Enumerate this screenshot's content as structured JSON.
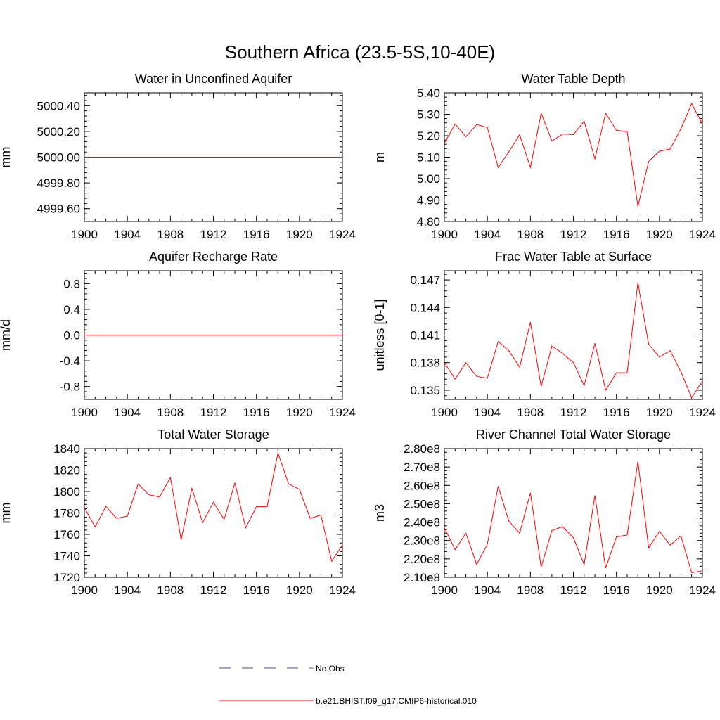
{
  "title": "Southern Africa (23.5-5S,10-40E)",
  "colors": {
    "model": "#ff0000",
    "obs": "#4b4bcc",
    "axis": "#000000"
  },
  "legend": [
    {
      "label": "No Obs",
      "style": "dashed",
      "color": "#4b4bcc"
    },
    {
      "label": "b.e21.BHIST.f09_g17.CMIP6-historical.010",
      "style": "solid",
      "color": "#ff0000"
    }
  ],
  "chart_data": [
    {
      "type": "line",
      "title": "Water in Unconfined Aquifer",
      "ylabel": "mm",
      "xlim": [
        1900,
        1924
      ],
      "ylim": [
        4999.5,
        5000.5
      ],
      "xticks": [
        "1900",
        "1904",
        "1908",
        "1912",
        "1916",
        "1920",
        "1924"
      ],
      "yticks": [
        4999.6,
        4999.8,
        5000.0,
        5000.2,
        5000.4
      ],
      "ytick_labels": [
        "4999.60",
        "4999.80",
        "5000.00",
        "5000.20",
        "5000.40"
      ],
      "x": [
        1900,
        1901,
        1902,
        1903,
        1904,
        1905,
        1906,
        1907,
        1908,
        1909,
        1910,
        1911,
        1912,
        1913,
        1914,
        1915,
        1916,
        1917,
        1918,
        1919,
        1920,
        1921,
        1922,
        1923,
        1924
      ],
      "series": [
        {
          "name": "b.e21.BHIST.f09_g17.CMIP6-historical.010",
          "values": [
            5000,
            5000,
            5000,
            5000,
            5000,
            5000,
            5000,
            5000,
            5000,
            5000,
            5000,
            5000,
            5000,
            5000,
            5000,
            5000,
            5000,
            5000,
            5000,
            5000,
            5000,
            5000,
            5000,
            5000,
            5000
          ]
        }
      ]
    },
    {
      "type": "line",
      "title": "Water Table Depth",
      "ylabel": "m",
      "xlim": [
        1900,
        1924
      ],
      "ylim": [
        4.8,
        5.4
      ],
      "xticks": [
        "1900",
        "1904",
        "1908",
        "1912",
        "1916",
        "1920",
        "1924"
      ],
      "yticks": [
        4.8,
        4.9,
        5.0,
        5.1,
        5.2,
        5.3,
        5.4
      ],
      "ytick_labels": [
        "4.80",
        "4.90",
        "5.00",
        "5.10",
        "5.20",
        "5.30",
        "5.40"
      ],
      "x": [
        1900,
        1901,
        1902,
        1903,
        1904,
        1905,
        1906,
        1907,
        1908,
        1909,
        1910,
        1911,
        1912,
        1913,
        1914,
        1915,
        1916,
        1917,
        1918,
        1919,
        1920,
        1921,
        1922,
        1923,
        1924
      ],
      "series": [
        {
          "name": "b.e21.BHIST.f09_g17.CMIP6-historical.010",
          "values": [
            5.165,
            5.255,
            5.195,
            5.252,
            5.238,
            5.052,
            5.125,
            5.205,
            5.052,
            5.305,
            5.175,
            5.208,
            5.205,
            5.268,
            5.092,
            5.305,
            5.225,
            5.22,
            4.87,
            5.08,
            5.128,
            5.138,
            5.232,
            5.35,
            5.255
          ]
        }
      ]
    },
    {
      "type": "line",
      "title": "Aquifer Recharge Rate",
      "ylabel": "mm/d",
      "xlim": [
        1900,
        1924
      ],
      "ylim": [
        -1.0,
        1.0
      ],
      "xticks": [
        "1900",
        "1904",
        "1908",
        "1912",
        "1916",
        "1920",
        "1924"
      ],
      "yticks": [
        -0.8,
        -0.4,
        0.0,
        0.4,
        0.8
      ],
      "ytick_labels": [
        "-0.8",
        "-0.4",
        "0.0",
        "0.4",
        "0.8"
      ],
      "x": [
        1900,
        1901,
        1902,
        1903,
        1904,
        1905,
        1906,
        1907,
        1908,
        1909,
        1910,
        1911,
        1912,
        1913,
        1914,
        1915,
        1916,
        1917,
        1918,
        1919,
        1920,
        1921,
        1922,
        1923,
        1924
      ],
      "series": [
        {
          "name": "b.e21.BHIST.f09_g17.CMIP6-historical.010",
          "values": [
            0,
            0,
            0,
            0,
            0,
            0,
            0,
            0,
            0,
            0,
            0,
            0,
            0,
            0,
            0,
            0,
            0,
            0,
            0,
            0,
            0,
            0,
            0,
            0,
            0
          ]
        }
      ]
    },
    {
      "type": "line",
      "title": "Frac Water Table at Surface",
      "ylabel": "unitless [0-1]",
      "xlim": [
        1900,
        1924
      ],
      "ylim": [
        0.134,
        0.148
      ],
      "xticks": [
        "1900",
        "1904",
        "1908",
        "1912",
        "1916",
        "1920",
        "1924"
      ],
      "yticks": [
        0.135,
        0.138,
        0.141,
        0.144,
        0.147
      ],
      "ytick_labels": [
        "0.135",
        "0.138",
        "0.141",
        "0.144",
        "0.147"
      ],
      "x": [
        1900,
        1901,
        1902,
        1903,
        1904,
        1905,
        1906,
        1907,
        1908,
        1909,
        1910,
        1911,
        1912,
        1913,
        1914,
        1915,
        1916,
        1917,
        1918,
        1919,
        1920,
        1921,
        1922,
        1923,
        1924
      ],
      "series": [
        {
          "name": "b.e21.BHIST.f09_g17.CMIP6-historical.010",
          "values": [
            0.138,
            0.1362,
            0.138,
            0.1365,
            0.1363,
            0.1403,
            0.1393,
            0.1375,
            0.1424,
            0.1354,
            0.1398,
            0.139,
            0.138,
            0.1355,
            0.1401,
            0.135,
            0.1369,
            0.1369,
            0.1467,
            0.14,
            0.1386,
            0.1393,
            0.137,
            0.1342,
            0.136
          ]
        }
      ]
    },
    {
      "type": "line",
      "title": "Total Water Storage",
      "ylabel": "mm",
      "xlim": [
        1900,
        1924
      ],
      "ylim": [
        1720,
        1840
      ],
      "xticks": [
        "1900",
        "1904",
        "1908",
        "1912",
        "1916",
        "1920",
        "1924"
      ],
      "yticks": [
        1720,
        1740,
        1760,
        1780,
        1800,
        1820,
        1840
      ],
      "ytick_labels": [
        "1720",
        "1740",
        "1760",
        "1780",
        "1800",
        "1820",
        "1840"
      ],
      "x": [
        1900,
        1901,
        1902,
        1903,
        1904,
        1905,
        1906,
        1907,
        1908,
        1909,
        1910,
        1911,
        1912,
        1913,
        1914,
        1915,
        1916,
        1917,
        1918,
        1919,
        1920,
        1921,
        1922,
        1923,
        1924
      ],
      "series": [
        {
          "name": "b.e21.BHIST.f09_g17.CMIP6-historical.010",
          "values": [
            1785,
            1767,
            1786,
            1775,
            1777,
            1807,
            1797,
            1795,
            1813,
            1755,
            1803,
            1771,
            1790,
            1774,
            1808,
            1766,
            1786,
            1786,
            1836,
            1807,
            1802,
            1775,
            1778,
            1735,
            1750
          ]
        }
      ]
    },
    {
      "type": "line",
      "title": "River Channel Total Water Storage",
      "ylabel": "m3",
      "xlim": [
        1900,
        1924
      ],
      "ylim": [
        210000000.0,
        280000000.0
      ],
      "xticks": [
        "1900",
        "1904",
        "1908",
        "1912",
        "1916",
        "1920",
        "1924"
      ],
      "yticks": [
        210000000.0,
        220000000.0,
        230000000.0,
        240000000.0,
        250000000.0,
        260000000.0,
        270000000.0,
        280000000.0
      ],
      "ytick_labels": [
        "2.10e8",
        "2.20e8",
        "2.30e8",
        "2.40e8",
        "2.50e8",
        "2.60e8",
        "2.70e8",
        "2.80e8"
      ],
      "x": [
        1900,
        1901,
        1902,
        1903,
        1904,
        1905,
        1906,
        1907,
        1908,
        1909,
        1910,
        1911,
        1912,
        1913,
        1914,
        1915,
        1916,
        1917,
        1918,
        1919,
        1920,
        1921,
        1922,
        1923,
        1924
      ],
      "series": [
        {
          "name": "b.e21.BHIST.f09_g17.CMIP6-historical.010",
          "values": [
            237000000.0,
            225000000.0,
            234000000.0,
            217000000.0,
            228000000.0,
            259500000.0,
            240500000.0,
            234000000.0,
            256000000.0,
            215500000.0,
            235500000.0,
            237500000.0,
            231500000.0,
            217000000.0,
            254500000.0,
            215000000.0,
            232000000.0,
            233000000.0,
            273000000.0,
            226000000.0,
            235000000.0,
            227500000.0,
            232500000.0,
            212500000.0,
            213500000.0
          ]
        }
      ]
    }
  ]
}
